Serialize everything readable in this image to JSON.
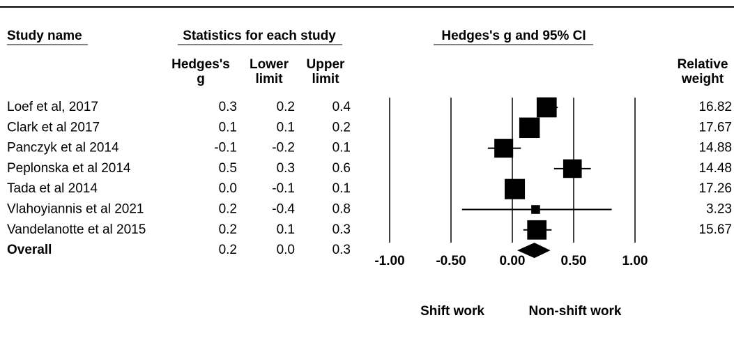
{
  "chart_data": {
    "type": "forest",
    "headers": {
      "study": "Study name",
      "stats": "Statistics for each study",
      "plot": "Hedges's g and 95% CI",
      "g": "Hedges's g",
      "lower": "Lower limit",
      "upper": "Upper limit",
      "weight": "Relative weight"
    },
    "categories": [
      "Loef et al, 2017",
      "Clark et al 2017",
      "Panczyk et al 2014",
      "Peplonska et al 2014",
      "Tada et al 2014",
      "Vlahoyiannis et al 2021",
      "Vandelanotte et al 2015"
    ],
    "values": [
      0.28,
      0.14,
      -0.07,
      0.49,
      0.02,
      0.19,
      0.2
    ],
    "value_labels": [
      "0.3",
      "0.1",
      "-0.1",
      "0.5",
      "0.0",
      "0.2",
      "0.2"
    ],
    "lower": [
      0.2,
      0.09,
      -0.2,
      0.34,
      -0.06,
      -0.41,
      0.09
    ],
    "lower_labels": [
      "0.2",
      "0.1",
      "-0.2",
      "0.3",
      "-0.1",
      "-0.4",
      "0.1"
    ],
    "upper": [
      0.37,
      0.19,
      0.07,
      0.64,
      0.09,
      0.81,
      0.32
    ],
    "upper_labels": [
      "0.4",
      "0.2",
      "0.1",
      "0.6",
      "0.1",
      "0.8",
      "0.3"
    ],
    "weights": [
      16.82,
      17.67,
      14.88,
      14.48,
      17.26,
      3.23,
      15.67
    ],
    "overall": {
      "name": "Overall",
      "value": 0.18,
      "value_label": "0.2",
      "lower": 0.04,
      "lower_label": "0.0",
      "upper": 0.31,
      "upper_label": "0.3"
    },
    "xlim": [
      -1,
      1
    ],
    "xticks": [
      {
        "value": -1,
        "label": "-1.00"
      },
      {
        "value": -0.5,
        "label": "-0.50"
      },
      {
        "value": 0,
        "label": "0.00"
      },
      {
        "value": 0.5,
        "label": "0.50"
      },
      {
        "value": 1,
        "label": "1.00"
      }
    ],
    "grid": true,
    "left_label": "Shift work",
    "right_label": "Non-shift work",
    "color": "#000000"
  }
}
